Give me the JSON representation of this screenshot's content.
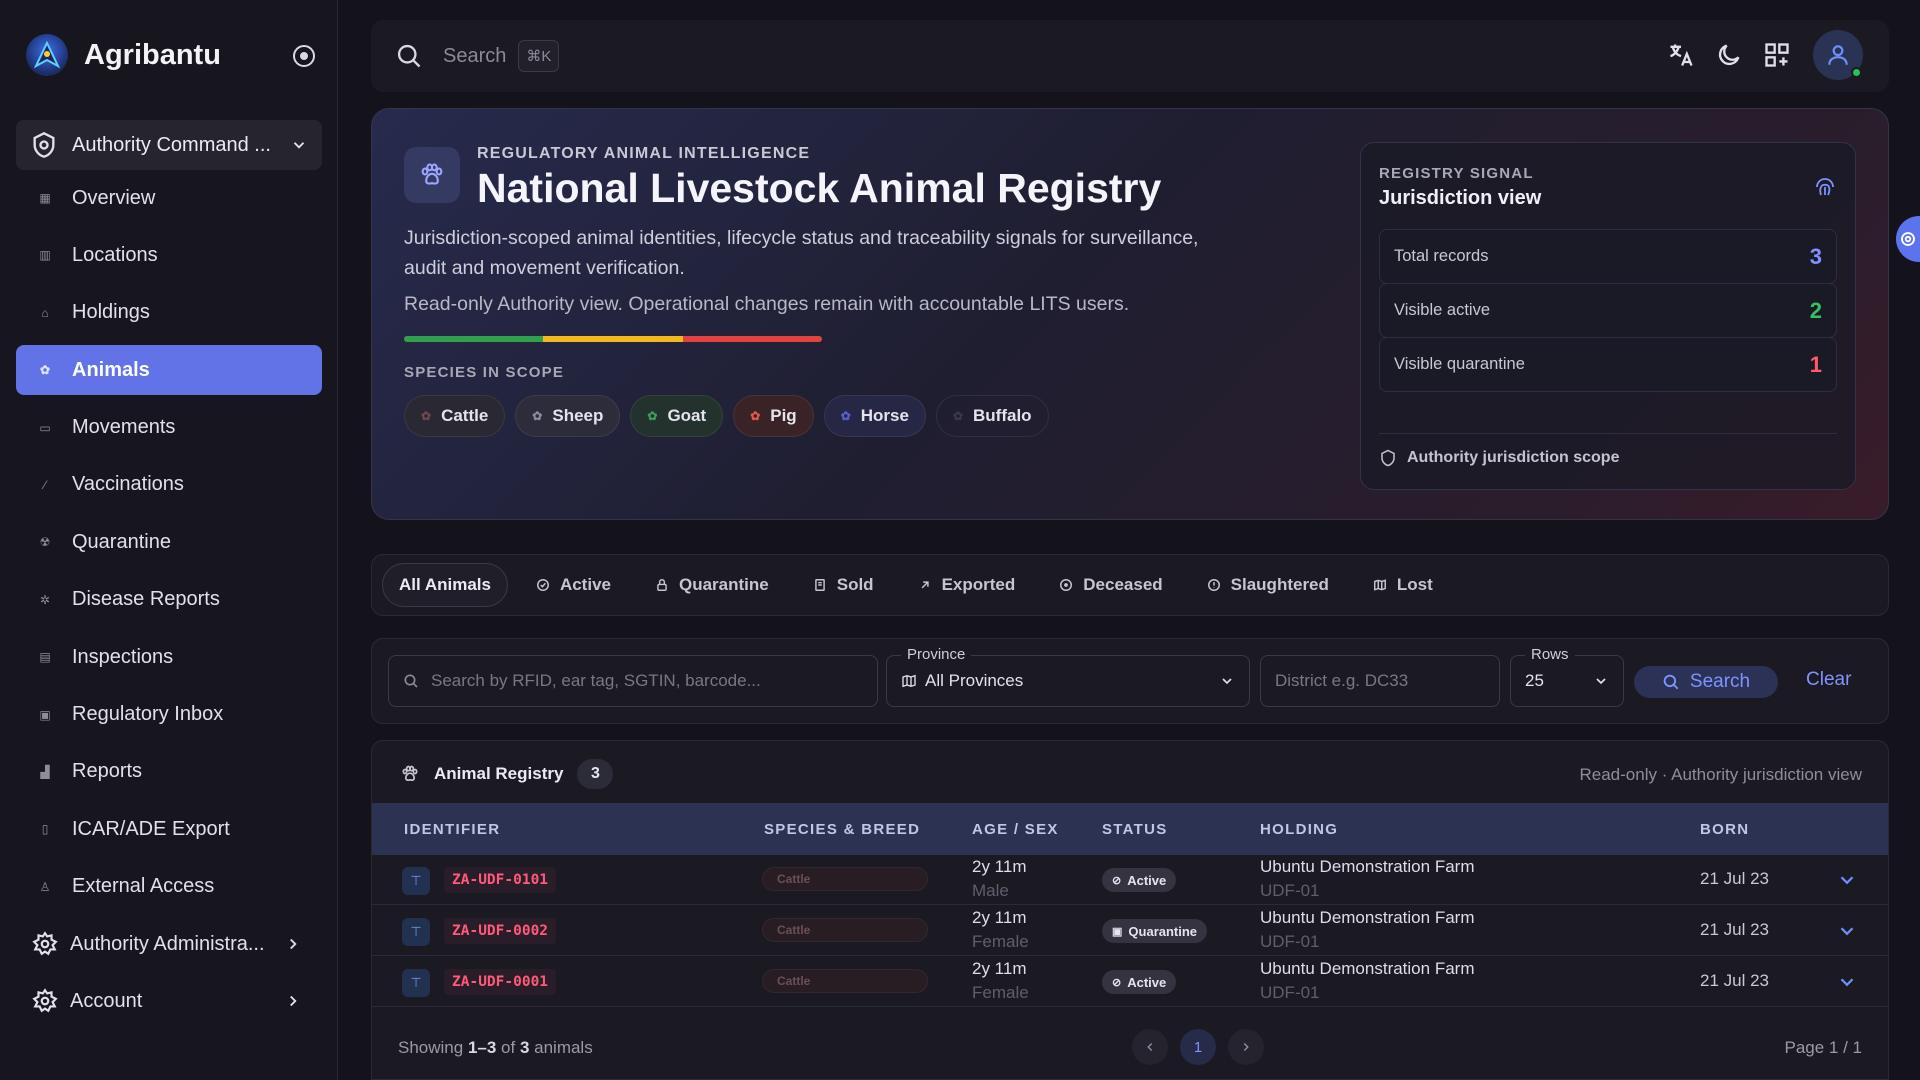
{
  "brand": {
    "name": "Agribantu"
  },
  "sidebar": {
    "command": {
      "label": "Authority Command ..."
    },
    "items": [
      {
        "label": "Overview"
      },
      {
        "label": "Locations"
      },
      {
        "label": "Holdings"
      },
      {
        "label": "Animals",
        "active": true
      },
      {
        "label": "Movements"
      },
      {
        "label": "Vaccinations"
      },
      {
        "label": "Quarantine"
      },
      {
        "label": "Disease Reports"
      },
      {
        "label": "Inspections"
      },
      {
        "label": "Regulatory Inbox"
      },
      {
        "label": "Reports"
      },
      {
        "label": "ICAR/ADE Export"
      },
      {
        "label": "External Access"
      }
    ],
    "groups": [
      {
        "label": "Authority Administra..."
      },
      {
        "label": "Account"
      }
    ]
  },
  "topbar": {
    "search_placeholder": "Search",
    "shortcut": "⌘K"
  },
  "hero": {
    "eyebrow": "REGULATORY ANIMAL INTELLIGENCE",
    "title": "National Livestock Animal Registry",
    "description": "Jurisdiction-scoped animal identities, lifecycle status and traceability signals for surveillance, audit and movement verification.",
    "note": "Read-only Authority view. Operational changes remain with accountable LITS users.",
    "species_label": "SPECIES IN SCOPE",
    "species": [
      {
        "label": "Cattle",
        "bg": "#2a2832",
        "dot": "#6e4a4a"
      },
      {
        "label": "Sheep",
        "bg": "#2c2c3a",
        "dot": "#8a8aa0"
      },
      {
        "label": "Goat",
        "bg": "#23322c",
        "dot": "#3f9a5d"
      },
      {
        "label": "Pig",
        "bg": "#3a2326",
        "dot": "#e0584e"
      },
      {
        "label": "Horse",
        "bg": "#262744",
        "dot": "#5a5fd0"
      },
      {
        "label": "Buffalo",
        "bg": "transparent",
        "dot": "#3a3946"
      }
    ],
    "stripe_colors": [
      "#2fa14d",
      "#f2b81e",
      "#e2433e"
    ]
  },
  "signal": {
    "eyebrow": "REGISTRY SIGNAL",
    "title": "Jurisdiction view",
    "metrics": [
      {
        "label": "Total records",
        "value": "3",
        "color": "#7e93ff"
      },
      {
        "label": "Visible active",
        "value": "2",
        "color": "#36c05e"
      },
      {
        "label": "Visible quarantine",
        "value": "1",
        "color": "#ff5a6a"
      }
    ],
    "scope": "Authority jurisdiction scope"
  },
  "tabs": [
    {
      "label": "All Animals",
      "icon": "none",
      "active": true
    },
    {
      "label": "Active",
      "icon": "check-circle-icon"
    },
    {
      "label": "Quarantine",
      "icon": "lock-icon"
    },
    {
      "label": "Sold",
      "icon": "receipt-icon"
    },
    {
      "label": "Exported",
      "icon": "arrow-up-right-icon"
    },
    {
      "label": "Deceased",
      "icon": "circle-dot-icon"
    },
    {
      "label": "Slaughtered",
      "icon": "alert-circle-icon"
    },
    {
      "label": "Lost",
      "icon": "map-icon"
    }
  ],
  "filters": {
    "search_placeholder": "Search by RFID, ear tag, SGTIN, barcode...",
    "province_label": "Province",
    "province_value": "All Provinces",
    "district_placeholder": "District e.g. DC33",
    "rows_label": "Rows",
    "rows_value": "25",
    "search_button": "Search",
    "clear_button": "Clear"
  },
  "registry": {
    "title": "Animal Registry",
    "count": "3",
    "meta": "Read-only · Authority jurisdiction view",
    "columns": [
      "IDENTIFIER",
      "SPECIES & BREED",
      "AGE / SEX",
      "STATUS",
      "HOLDING",
      "BORN"
    ],
    "rows": [
      {
        "id": "ZA-UDF-0101",
        "species": "Cattle",
        "age": "2y 11m",
        "sex": "Male",
        "status": "Active",
        "status_icon": "check-circle-icon",
        "holding": "Ubuntu Demonstration Farm",
        "holding_code": "UDF-01",
        "born": "21 Jul 23"
      },
      {
        "id": "ZA-UDF-0002",
        "species": "Cattle",
        "age": "2y 11m",
        "sex": "Female",
        "status": "Quarantine",
        "status_icon": "lock-icon",
        "holding": "Ubuntu Demonstration Farm",
        "holding_code": "UDF-01",
        "born": "21 Jul 23"
      },
      {
        "id": "ZA-UDF-0001",
        "species": "Cattle",
        "age": "2y 11m",
        "sex": "Female",
        "status": "Active",
        "status_icon": "check-circle-icon",
        "holding": "Ubuntu Demonstration Farm",
        "holding_code": "UDF-01",
        "born": "21 Jul 23"
      }
    ],
    "footer": {
      "prefix": "Showing ",
      "range": "1–3",
      "mid": " of ",
      "total": "3",
      "suffix": " animals"
    },
    "page": "1",
    "page_of": "Page 1 / 1"
  }
}
